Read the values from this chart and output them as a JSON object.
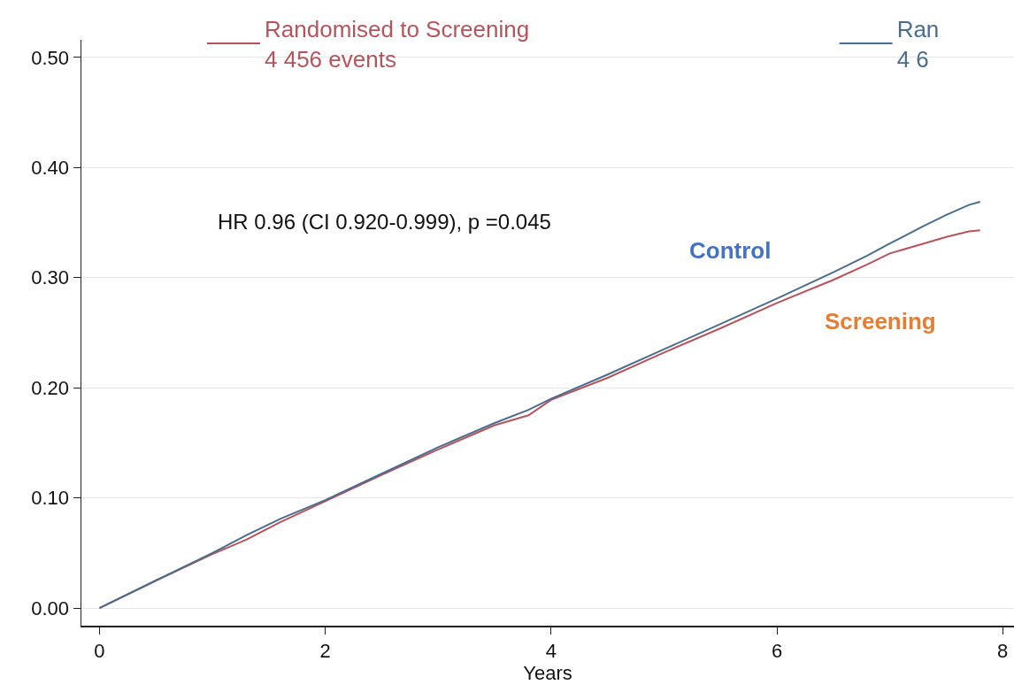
{
  "chart_data": {
    "type": "line",
    "xlabel": "Years",
    "xlim": [
      -0.16,
      8.1
    ],
    "ylim": [
      -0.016,
      0.516
    ],
    "xticks": [
      0,
      2,
      4,
      6,
      8
    ],
    "yticks": [
      {
        "value": 0,
        "label": "0.00"
      },
      {
        "value": 0.1,
        "label": "0.10"
      },
      {
        "value": 0.2,
        "label": "0.20"
      },
      {
        "value": 0.3,
        "label": "0.30"
      },
      {
        "value": 0.4,
        "label": "0.40"
      },
      {
        "value": 0.5,
        "label": "0.50"
      }
    ],
    "grid": "y",
    "legend": "top",
    "marker": "none",
    "line_style": "solid",
    "x": [
      0,
      0.5,
      1,
      1.3,
      1.6,
      2,
      2.5,
      3,
      3.5,
      3.8,
      4,
      4.5,
      5,
      5.5,
      6,
      6.5,
      6.8,
      7,
      7.3,
      7.5,
      7.7,
      7.8
    ],
    "series": [
      {
        "name": "Randomised to Screening\n4 456 events",
        "color": "#b5545c",
        "values": [
          0,
          0.025,
          0.049,
          0.062,
          0.078,
          0.097,
          0.121,
          0.144,
          0.166,
          0.175,
          0.189,
          0.209,
          0.232,
          0.254,
          0.277,
          0.298,
          0.312,
          0.322,
          0.331,
          0.337,
          0.342,
          0.343
        ]
      },
      {
        "name": "Ran\n4 6",
        "color": "#4a6d8e",
        "values": [
          0,
          0.025,
          0.05,
          0.066,
          0.081,
          0.098,
          0.122,
          0.146,
          0.168,
          0.18,
          0.19,
          0.212,
          0.235,
          0.258,
          0.281,
          0.305,
          0.32,
          0.331,
          0.347,
          0.357,
          0.366,
          0.369
        ]
      }
    ],
    "annotations": [
      "HR 0.96 (CI 0.920-0.999), p =0.045",
      "Control",
      "Screening"
    ]
  }
}
